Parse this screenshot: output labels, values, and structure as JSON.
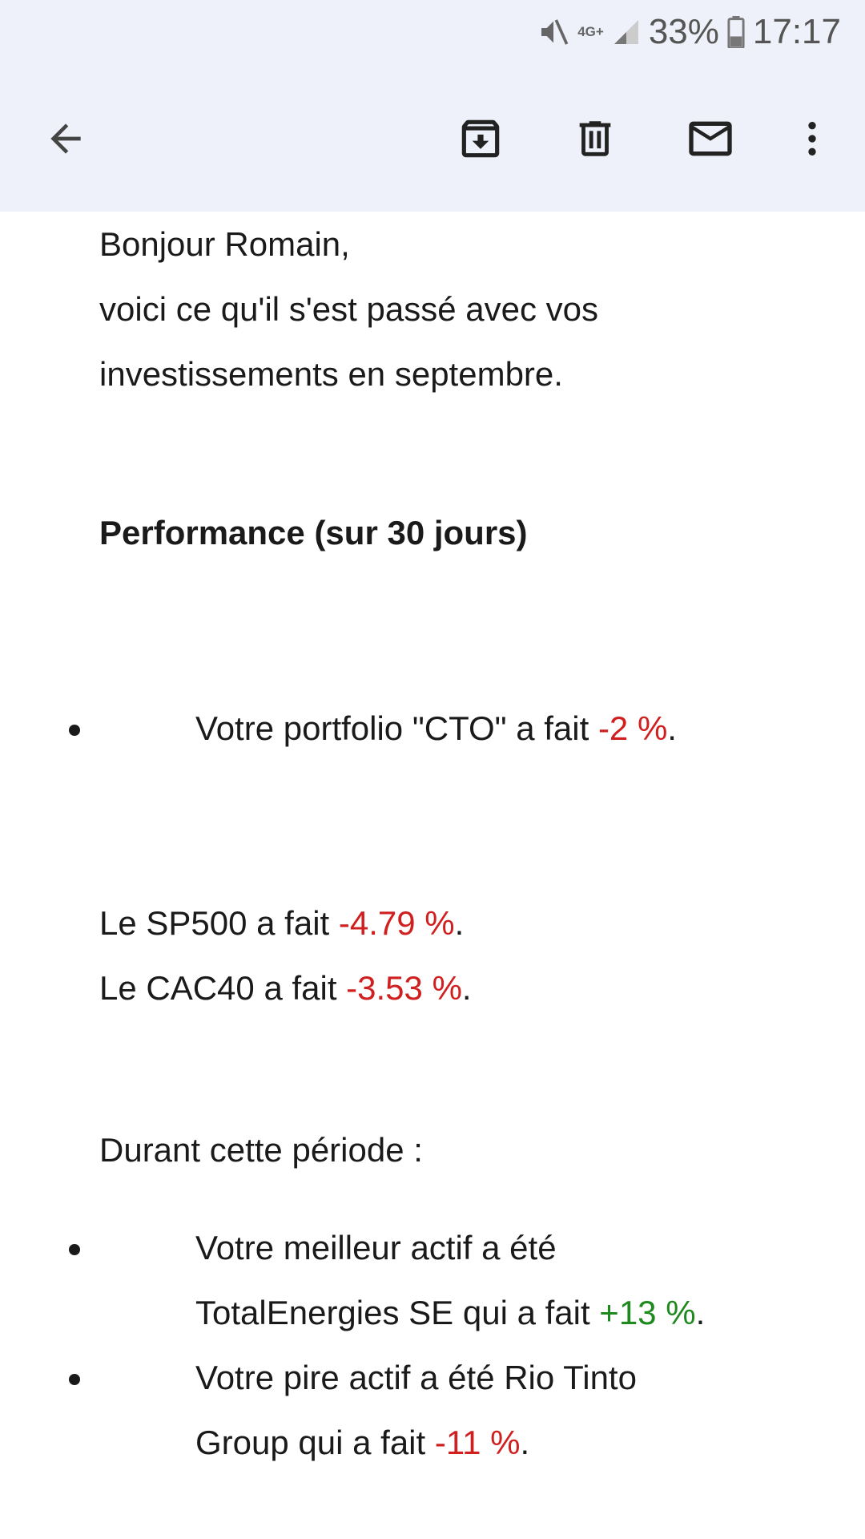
{
  "status": {
    "network": "4G+",
    "battery": "33%",
    "time": "17:17",
    "icons": [
      "mute-icon",
      "network-4g-icon",
      "signal-icon",
      "battery-icon"
    ]
  },
  "toolbar": {
    "icons": [
      "back-arrow-icon",
      "archive-icon",
      "delete-icon",
      "mark-unread-icon",
      "more-vert-icon"
    ]
  },
  "email": {
    "greeting": "Bonjour Romain,",
    "intro_line1": "voici ce qu'il s'est passé avec vos",
    "intro_line2": "investissements en septembre.",
    "performance_heading": "Performance (sur 30 jours)",
    "portfolio": {
      "prefix": "Votre portfolio \"CTO\" a fait ",
      "value": "-2 %",
      "suffix": "."
    },
    "sp500": {
      "prefix": "Le SP500 a fait ",
      "value": "-4.79 %",
      "suffix": "."
    },
    "cac40": {
      "prefix": "Le CAC40 a fait ",
      "value": "-3.53 %",
      "suffix": "."
    },
    "period_heading": "Durant cette période :",
    "best": {
      "line1": "Votre meilleur actif a été",
      "prefix": "TotalEnergies SE qui a fait ",
      "value": "+13 %",
      "suffix": "."
    },
    "worst": {
      "line1": "Votre pire actif a été Rio Tinto",
      "prefix": "Group qui a fait ",
      "value": "-11 %",
      "suffix": "."
    }
  },
  "colors": {
    "negative": "#d01f1f",
    "positive": "#1e8a1e",
    "header_bg": "#eef1f9"
  }
}
